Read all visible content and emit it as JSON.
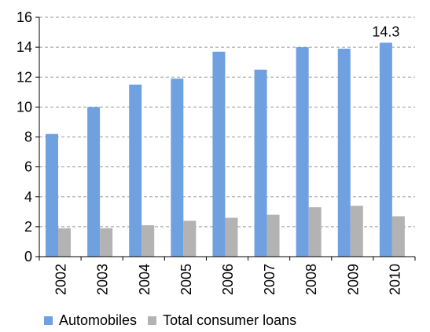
{
  "chart_data": {
    "type": "bar",
    "categories": [
      "2002",
      "2003",
      "2004",
      "2005",
      "2006",
      "2007",
      "2008",
      "2009",
      "2010"
    ],
    "series": [
      {
        "name": "Automobiles",
        "color": "#6fa1e0",
        "values": [
          8.2,
          10.0,
          11.5,
          11.9,
          13.7,
          12.5,
          14.0,
          13.9,
          14.3
        ]
      },
      {
        "name": "Total consumer loans",
        "color": "#b3b3b3",
        "values": [
          1.9,
          1.9,
          2.1,
          2.4,
          2.6,
          2.8,
          3.3,
          3.4,
          2.7
        ]
      }
    ],
    "data_labels": [
      {
        "series": 0,
        "index": 8,
        "text": "14.3"
      }
    ],
    "ylim": [
      0,
      16
    ],
    "yticks": [
      0,
      2,
      4,
      6,
      8,
      10,
      12,
      14,
      16
    ],
    "grid": "horizontal-dashed",
    "legend": "bottom"
  }
}
